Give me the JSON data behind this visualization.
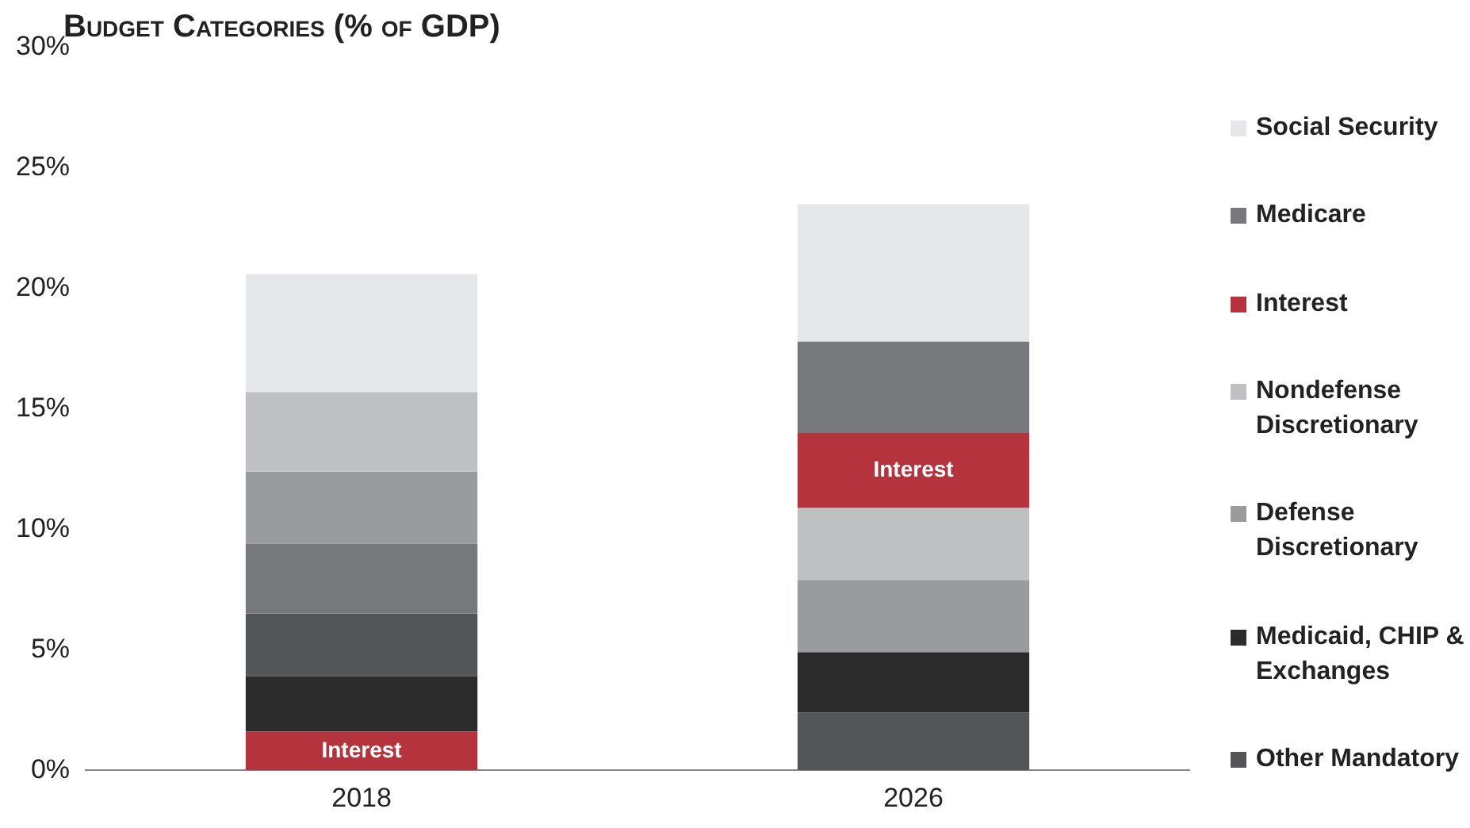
{
  "chart_data": {
    "type": "bar",
    "title": "Budget Categories (% of GDP)",
    "categories": [
      "2018",
      "2026"
    ],
    "legend": "right",
    "ylim": [
      0,
      30
    ],
    "yticks": [
      {
        "value": 0,
        "label": "0%"
      },
      {
        "value": 5,
        "label": "5%"
      },
      {
        "value": 10,
        "label": "10%"
      },
      {
        "value": 15,
        "label": "15%"
      },
      {
        "value": 20,
        "label": "20%"
      },
      {
        "value": 25,
        "label": "25%"
      },
      {
        "value": 30,
        "label": "30%"
      }
    ],
    "series": [
      {
        "name": "Social Security",
        "color": "#e6e7e9",
        "values": [
          4.9,
          5.7
        ],
        "base": [
          15.7,
          17.8
        ]
      },
      {
        "name": "Medicare",
        "color": "#77787b",
        "values": [
          2.9,
          3.8
        ],
        "base": [
          6.5,
          14.0
        ]
      },
      {
        "name": "Interest",
        "color": "#b5333c",
        "values": [
          1.6,
          3.1
        ],
        "base": [
          0,
          10.9
        ],
        "value_labels": [
          "Interest",
          "Interest"
        ]
      },
      {
        "name": "Nondefense Discretionary",
        "color": "#bfc0c2",
        "values": [
          3.3,
          3.0
        ],
        "base": [
          12.4,
          7.9
        ]
      },
      {
        "name": "Defense Discretionary",
        "color": "#9a9b9d",
        "values": [
          3.0,
          3.0
        ],
        "base": [
          9.4,
          4.9
        ]
      },
      {
        "name": "Medicaid, CHIP & Exchanges",
        "color": "#2b2b2b",
        "values": [
          2.3,
          2.5
        ],
        "base": [
          1.6,
          2.4
        ]
      },
      {
        "name": "Other Mandatory",
        "color": "#545557",
        "values": [
          2.6,
          2.4
        ],
        "base": [
          3.9,
          0
        ]
      }
    ]
  }
}
